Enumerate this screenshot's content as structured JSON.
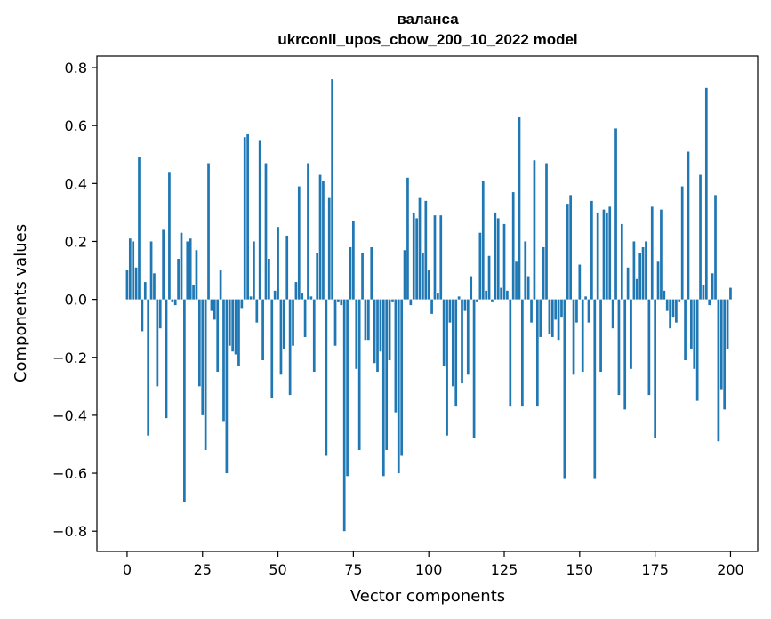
{
  "chart_data": {
    "type": "bar",
    "title": "валанса",
    "subtitle": "ukrconll_upos_cbow_200_10_2022 model",
    "xlabel": "Vector components",
    "ylabel": "Components values",
    "xlim": [
      -10,
      209
    ],
    "ylim": [
      -0.87,
      0.84
    ],
    "xticks": [
      0,
      25,
      50,
      75,
      100,
      125,
      150,
      175,
      200
    ],
    "yticks": [
      0.8,
      0.6,
      0.4,
      0.2,
      0.0,
      -0.2,
      -0.4,
      -0.6,
      -0.8
    ],
    "xtick_labels": [
      "0",
      "25",
      "50",
      "75",
      "100",
      "125",
      "150",
      "175",
      "200"
    ],
    "ytick_labels": [
      "0.8",
      "0.6",
      "0.4",
      "0.2",
      "0.0",
      "−0.2",
      "−0.4",
      "−0.6",
      "−0.8"
    ],
    "bar_color": "#1f77b4",
    "grid": false,
    "legend": "none",
    "values": [
      0.1,
      0.21,
      0.2,
      0.11,
      0.49,
      -0.11,
      0.06,
      -0.47,
      0.2,
      0.09,
      -0.3,
      -0.1,
      0.24,
      -0.41,
      0.44,
      -0.01,
      -0.02,
      0.14,
      0.23,
      -0.7,
      0.2,
      0.21,
      0.05,
      0.17,
      -0.3,
      -0.4,
      -0.52,
      0.47,
      -0.04,
      -0.07,
      -0.25,
      0.1,
      -0.42,
      -0.6,
      -0.16,
      -0.18,
      -0.19,
      -0.23,
      -0.03,
      0.56,
      0.57,
      0.01,
      0.2,
      -0.08,
      0.55,
      -0.21,
      0.47,
      0.14,
      -0.34,
      0.03,
      0.25,
      -0.26,
      -0.17,
      0.22,
      -0.33,
      -0.16,
      0.06,
      0.39,
      0.02,
      -0.13,
      0.47,
      0.01,
      -0.25,
      0.16,
      0.43,
      0.41,
      -0.54,
      0.35,
      0.76,
      -0.16,
      -0.01,
      -0.02,
      -0.8,
      -0.61,
      0.18,
      0.27,
      -0.24,
      -0.52,
      0.16,
      -0.14,
      -0.14,
      0.18,
      -0.22,
      -0.25,
      -0.18,
      -0.61,
      -0.52,
      -0.21,
      -0.01,
      -0.39,
      -0.6,
      -0.54,
      0.17,
      0.42,
      -0.02,
      0.3,
      0.28,
      0.35,
      0.16,
      0.34,
      0.1,
      -0.05,
      0.29,
      0.02,
      0.29,
      -0.23,
      -0.47,
      -0.08,
      -0.3,
      -0.37,
      0.01,
      -0.29,
      -0.04,
      -0.26,
      0.08,
      -0.48,
      -0.01,
      0.23,
      0.41,
      0.03,
      0.15,
      -0.01,
      0.3,
      0.28,
      0.04,
      0.26,
      0.03,
      -0.37,
      0.37,
      0.13,
      0.63,
      -0.37,
      0.2,
      0.08,
      -0.08,
      0.48,
      -0.37,
      -0.13,
      0.18,
      0.47,
      -0.12,
      -0.13,
      -0.07,
      -0.14,
      -0.06,
      -0.62,
      0.33,
      0.36,
      -0.26,
      -0.08,
      0.12,
      -0.25,
      0.01,
      -0.08,
      0.34,
      -0.62,
      0.3,
      -0.25,
      0.31,
      0.3,
      0.32,
      -0.1,
      0.59,
      -0.33,
      0.26,
      -0.38,
      0.11,
      -0.24,
      0.2,
      0.07,
      0.16,
      0.18,
      0.2,
      -0.33,
      0.32,
      -0.48,
      0.13,
      0.31,
      0.03,
      -0.04,
      -0.1,
      -0.06,
      -0.08,
      -0.01,
      0.39,
      -0.21,
      0.51,
      -0.17,
      -0.24,
      -0.35,
      0.43,
      0.05,
      0.73,
      -0.02,
      0.09,
      0.36,
      -0.49,
      -0.31,
      -0.38,
      -0.17,
      0.04
    ]
  }
}
